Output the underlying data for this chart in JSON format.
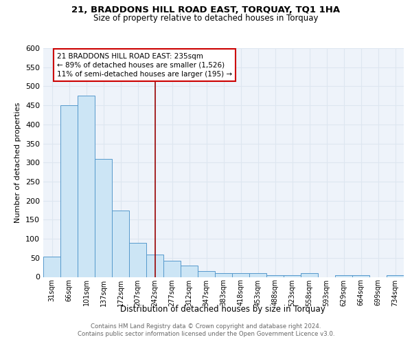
{
  "title1": "21, BRADDONS HILL ROAD EAST, TORQUAY, TQ1 1HA",
  "title2": "Size of property relative to detached houses in Torquay",
  "xlabel": "Distribution of detached houses by size in Torquay",
  "ylabel": "Number of detached properties",
  "categories": [
    "31sqm",
    "66sqm",
    "101sqm",
    "137sqm",
    "172sqm",
    "207sqm",
    "242sqm",
    "277sqm",
    "312sqm",
    "347sqm",
    "383sqm",
    "418sqm",
    "453sqm",
    "488sqm",
    "523sqm",
    "558sqm",
    "593sqm",
    "629sqm",
    "664sqm",
    "699sqm",
    "734sqm"
  ],
  "values": [
    53,
    450,
    475,
    310,
    175,
    90,
    58,
    43,
    30,
    15,
    10,
    10,
    10,
    5,
    5,
    10,
    0,
    5,
    5,
    0,
    5
  ],
  "bar_color": "#cce5f5",
  "bar_edge_color": "#5599cc",
  "grid_color": "#dde6f0",
  "background_color": "#eef3fa",
  "vline_x_index": 6,
  "vline_color": "#990000",
  "annotation_line1": "21 BRADDONS HILL ROAD EAST: 235sqm",
  "annotation_line2": "← 89% of detached houses are smaller (1,526)",
  "annotation_line3": "11% of semi-detached houses are larger (195) →",
  "annotation_box_color": "#ffffff",
  "annotation_box_edge": "#cc0000",
  "footer_line1": "Contains HM Land Registry data © Crown copyright and database right 2024.",
  "footer_line2": "Contains public sector information licensed under the Open Government Licence v3.0.",
  "ylim": [
    0,
    600
  ],
  "yticks": [
    0,
    50,
    100,
    150,
    200,
    250,
    300,
    350,
    400,
    450,
    500,
    550,
    600
  ]
}
